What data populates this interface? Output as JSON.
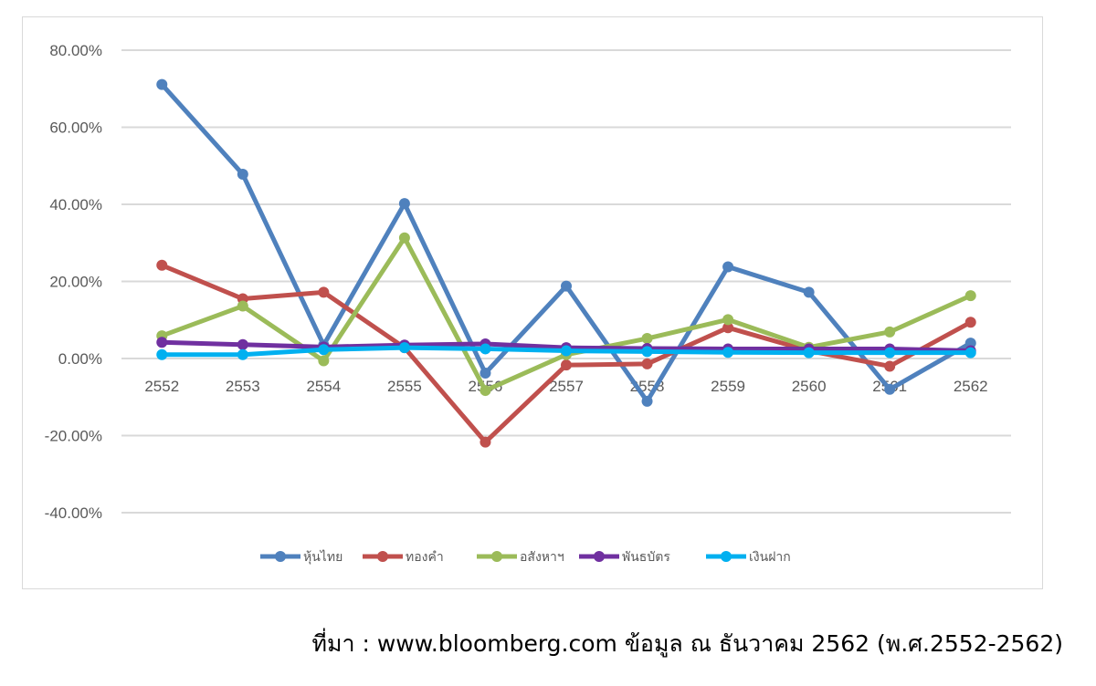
{
  "chart_data": {
    "type": "line",
    "title": "",
    "xlabel": "",
    "ylabel": "",
    "categories": [
      "2552",
      "2553",
      "2554",
      "2555",
      "2556",
      "2557",
      "2558",
      "2559",
      "2560",
      "2561",
      "2562"
    ],
    "ylim": [
      -0.4,
      0.8
    ],
    "yticks": [
      0.8,
      0.6,
      0.4,
      0.2,
      0.0,
      -0.2,
      -0.4
    ],
    "ytick_labels": [
      "80.00%",
      "60.00%",
      "40.00%",
      "20.00%",
      "0.00%",
      "-20.00%",
      "-40.00%"
    ],
    "grid": true,
    "legend_position": "bottom",
    "series": [
      {
        "name": "หุ้นไทย",
        "color": "#4F81BD",
        "values": [
          0.711,
          0.478,
          0.035,
          0.402,
          -0.038,
          0.188,
          -0.111,
          0.238,
          0.172,
          -0.08,
          0.04
        ]
      },
      {
        "name": "ทองคำ",
        "color": "#C0504D",
        "values": [
          0.242,
          0.155,
          0.172,
          0.028,
          -0.217,
          -0.017,
          -0.014,
          0.08,
          0.02,
          -0.02,
          0.094
        ]
      },
      {
        "name": "อสังหาฯ",
        "color": "#9BBB59",
        "values": [
          0.059,
          0.136,
          -0.006,
          0.313,
          -0.083,
          0.01,
          0.052,
          0.101,
          0.029,
          0.069,
          0.163
        ]
      },
      {
        "name": "พันธบัตร",
        "color": "#7030A0",
        "values": [
          0.042,
          0.036,
          0.03,
          0.035,
          0.038,
          0.028,
          0.026,
          0.025,
          0.025,
          0.025,
          0.02
        ]
      },
      {
        "name": "เงินฝาก",
        "color": "#00B0F0",
        "values": [
          0.01,
          0.01,
          0.023,
          0.028,
          0.025,
          0.02,
          0.018,
          0.016,
          0.015,
          0.015,
          0.015
        ]
      }
    ]
  },
  "source_note": "ที่มา : www.bloomberg.com  ข้อมูล ณ ธันวาคม 2562 (พ.ศ.2552-2562)"
}
